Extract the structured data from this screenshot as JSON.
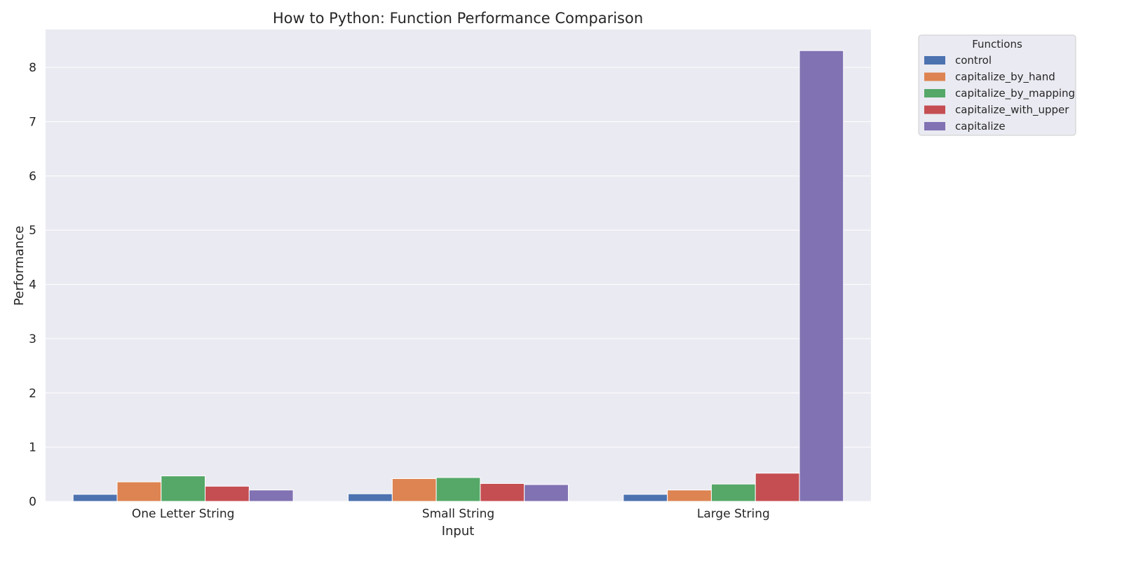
{
  "chart_data": {
    "type": "bar",
    "title": "How to Python: Function Performance Comparison",
    "xlabel": "Input",
    "ylabel": "Performance",
    "ylim": [
      0,
      8.7
    ],
    "yticks": [
      0,
      1,
      2,
      3,
      4,
      5,
      6,
      7,
      8
    ],
    "grid": true,
    "legend": {
      "title": "Functions",
      "placement": "outside-top-right"
    },
    "categories": [
      "One Letter String",
      "Small String",
      "Large String"
    ],
    "series": [
      {
        "name": "control",
        "color": "#4c72b0",
        "values": [
          0.13,
          0.14,
          0.13
        ]
      },
      {
        "name": "capitalize_by_hand",
        "color": "#dd8452",
        "values": [
          0.36,
          0.42,
          0.21
        ]
      },
      {
        "name": "capitalize_by_mapping",
        "color": "#55a868",
        "values": [
          0.47,
          0.44,
          0.32
        ]
      },
      {
        "name": "capitalize_with_upper",
        "color": "#c44e52",
        "values": [
          0.28,
          0.33,
          0.52
        ]
      },
      {
        "name": "capitalize",
        "color": "#8172b3",
        "values": [
          0.21,
          0.31,
          8.31
        ]
      }
    ]
  }
}
